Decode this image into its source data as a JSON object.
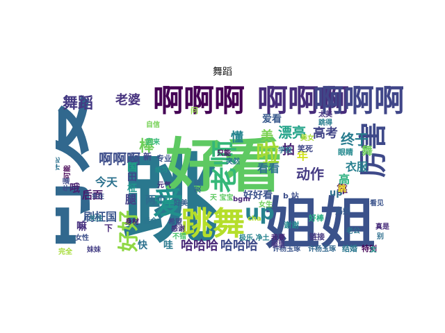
{
  "title": "舞蹈",
  "words": [
    {
      "text": "跳",
      "color": "#2a788e"
    },
    {
      "text": "好看",
      "color": "#5ec962"
    },
    {
      "text": "姐姐",
      "color": "#3b528b"
    },
    {
      "text": "可爱",
      "color": "#31688e"
    },
    {
      "text": "啊啊啊",
      "color": "#440154"
    },
    {
      "text": "啊啊啊",
      "color": "#472d7b"
    },
    {
      "text": "啊啊啊",
      "color": "#404688"
    },
    {
      "text": "跳舞",
      "color": "#b5de2b"
    },
    {
      "text": "爱",
      "color": "#21918c"
    },
    {
      "text": "老师",
      "color": "#35b779"
    },
    {
      "text": "厉害",
      "color": "#3e4989"
    },
    {
      "text": "up",
      "color": "#26828e"
    },
    {
      "text": "好好",
      "color": "#8fd744"
    },
    {
      "text": "舞蹈",
      "color": "#443983"
    },
    {
      "text": "老婆",
      "color": "#46327e"
    },
    {
      "text": "啦",
      "color": "#a2da37"
    },
    {
      "text": "棒",
      "color": "#6ece58"
    },
    {
      "text": "漂亮",
      "color": "#1fa187"
    },
    {
      "text": "高考",
      "color": "#414487"
    },
    {
      "text": "终于",
      "color": "#287c8e"
    },
    {
      "text": "动作",
      "color": "#443a83"
    },
    {
      "text": "哈哈哈",
      "color": "#482878"
    },
    {
      "text": "哈哈哈",
      "color": "#3e4a89"
    },
    {
      "text": "啊啊啊",
      "color": "#3d4d8a"
    },
    {
      "text": "刷柾国",
      "color": "#39558c"
    },
    {
      "text": "爱看",
      "color": "#38598c"
    },
    {
      "text": "懂",
      "color": "#25848e"
    },
    {
      "text": "看看",
      "color": "#2d708e"
    },
    {
      "text": "美",
      "color": "#7ad151"
    },
    {
      "text": "拍",
      "color": "#482173"
    },
    {
      "text": "年",
      "color": "#d2e21b"
    },
    {
      "text": "好好看",
      "color": "#3b518b"
    },
    {
      "text": "衣服",
      "color": "#277f8e"
    },
    {
      "text": "靠",
      "color": "#471063"
    },
    {
      "text": "高",
      "color": "#29af7f"
    },
    {
      "text": "腿",
      "color": "#433e85"
    },
    {
      "text": "田",
      "color": "#3f4889"
    },
    {
      "text": "柾",
      "color": "#1f968b"
    },
    {
      "text": "国",
      "color": "#20a386"
    },
    {
      "text": "今天",
      "color": "#2c728e"
    },
    {
      "text": "后面",
      "color": "#481769"
    },
    {
      "text": "哦",
      "color": "#481f70"
    },
    {
      "text": "两个",
      "color": "#2f6c8e"
    },
    {
      "text": "嘛",
      "color": "#462f7e"
    },
    {
      "text": "牛",
      "color": "#1e9c89"
    },
    {
      "text": "快",
      "color": "#2d718e"
    },
    {
      "text": "哇",
      "color": "#29798e"
    },
    {
      "text": "舞",
      "color": "#6ccd5a"
    },
    {
      "text": "up",
      "color": "#2e6e8e"
    },
    {
      "text": "许杨玉琢",
      "color": "#3a548c"
    },
    {
      "text": "许杨玉琢",
      "color": "#31678e"
    },
    {
      "text": "b 站",
      "color": "#3d4e8a"
    },
    {
      "text": "bgm",
      "color": "#482677"
    },
    {
      "text": "妈妈",
      "color": "#375a8c"
    },
    {
      "text": "谢谢",
      "color": "#24878e"
    },
    {
      "text": "结婚",
      "color": "#2a768e"
    },
    {
      "text": "特别",
      "color": "#440256"
    },
    {
      "text": "起来",
      "color": "#481a6c"
    },
    {
      "text": "真是",
      "color": "#472c7a"
    },
    {
      "text": "看见",
      "color": "#3a538b"
    },
    {
      "text": "老公",
      "color": "#2b748e"
    },
    {
      "text": "女",
      "color": "#1f988b"
    },
    {
      "text": "别",
      "color": "#2e6f8e"
    },
    {
      "text": "好棒",
      "color": "#26ad81"
    },
    {
      "text": "链接",
      "color": "#45377f"
    },
    {
      "text": "我要",
      "color": "#482475"
    },
    {
      "text": "哪里",
      "color": "#453581"
    },
    {
      "text": "女生",
      "color": "#6ece58"
    },
    {
      "text": "好美",
      "color": "#34608d"
    },
    {
      "text": "希望",
      "color": "#3f4788"
    },
    {
      "text": "感谢",
      "color": "#46307e"
    },
    {
      "text": "不错",
      "color": "#4ac16d"
    },
    {
      "text": "身材",
      "color": "#481b6d"
    },
    {
      "text": "适合",
      "color": "#2b758e"
    },
    {
      "text": "专业",
      "color": "#3b528b"
    },
    {
      "text": "眼睛",
      "color": "#23898e"
    },
    {
      "text": "美女",
      "color": "#a8db34"
    },
    {
      "text": "学校",
      "color": "#2a778e"
    },
    {
      "text": "笑死",
      "color": "#3f4788"
    },
    {
      "text": "太美",
      "color": "#46337f"
    },
    {
      "text": "跳得",
      "color": "#287d8e"
    },
    {
      "text": "突然",
      "color": "#2c738e"
    },
    {
      "text": "只能",
      "color": "#46085c"
    },
    {
      "text": "女性",
      "color": "#3c4f8a"
    },
    {
      "text": "自信",
      "color": "#75d054"
    },
    {
      "text": "评论",
      "color": "#2c728e"
    },
    {
      "text": "妹妹",
      "color": "#433d84"
    },
    {
      "text": "完全",
      "color": "#a5db36"
    },
    {
      "text": "关注",
      "color": "#2a788e"
    },
    {
      "text": "可能",
      "color": "#440154"
    },
    {
      "text": "牛逼",
      "color": "#3e4a89"
    },
    {
      "text": "回来",
      "color": "#35b779"
    },
    {
      "text": "下",
      "color": "#482878"
    },
    {
      "text": "新",
      "color": "#404688"
    },
    {
      "text": "元气",
      "color": "#472d7b"
    },
    {
      "text": "天 宝宝",
      "color": "#5ec962"
    },
    {
      "text": "发现",
      "color": "#31688e"
    },
    {
      "text": "极乐 净土",
      "color": "#26828e"
    },
    {
      "text": "cha",
      "color": "#b5de2b"
    },
    {
      "text": "练习",
      "color": "#21918c"
    },
    {
      "text": "问",
      "color": "#8fd744"
    },
    {
      "text": "实在",
      "color": "#3b528b"
    },
    {
      "text": "跳",
      "color": "#fde725"
    }
  ]
}
